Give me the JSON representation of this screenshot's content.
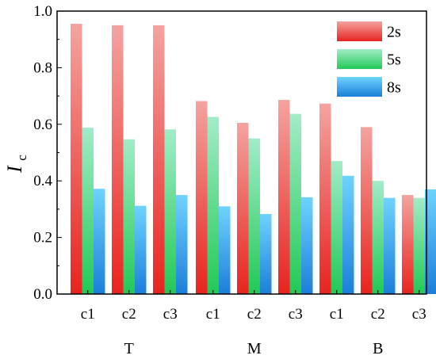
{
  "chart_data": {
    "type": "bar",
    "ylabel_main": "I",
    "ylabel_sub": "c",
    "ylim": [
      0,
      1.0
    ],
    "yticks": [
      "0.0",
      "0.2",
      "0.4",
      "0.6",
      "0.8",
      "1.0"
    ],
    "groups": [
      {
        "label": "T",
        "categories": [
          "c1",
          "c2",
          "c3"
        ]
      },
      {
        "label": "M",
        "categories": [
          "c1",
          "c2",
          "c3"
        ]
      },
      {
        "label": "B",
        "categories": [
          "c1",
          "c2",
          "c3"
        ]
      }
    ],
    "series": [
      {
        "name": "2s",
        "color_top": "#f4a3a0",
        "color_bottom": "#e8241f",
        "values": [
          0.955,
          0.95,
          0.95,
          0.682,
          0.605,
          0.686,
          0.673,
          0.59,
          0.35
        ]
      },
      {
        "name": "5s",
        "color_top": "#a2ecc8",
        "color_bottom": "#22c956",
        "values": [
          0.588,
          0.547,
          0.582,
          0.626,
          0.55,
          0.637,
          0.47,
          0.4,
          0.34
        ]
      },
      {
        "name": "8s",
        "color_top": "#6fd3ff",
        "color_bottom": "#1b7fd9",
        "values": [
          0.372,
          0.312,
          0.35,
          0.31,
          0.283,
          0.342,
          0.418,
          0.34,
          0.37
        ]
      }
    ],
    "legend_position": "top-right",
    "grid": false
  }
}
